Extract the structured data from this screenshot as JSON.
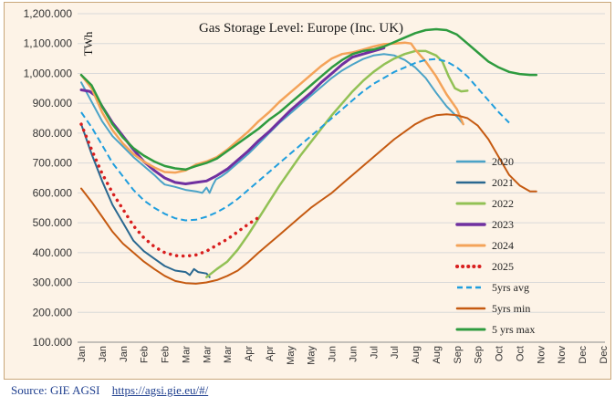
{
  "chart_data": {
    "type": "line",
    "title": "Gas Storage Level: Europe (Inc. UK)",
    "ylabel": "TWh",
    "xlabel": "",
    "ylim": [
      100,
      1200
    ],
    "yticks": [
      "100.000",
      "200.000",
      "300.000",
      "400.000",
      "500.000",
      "600.000",
      "700.000",
      "800.000",
      "900.000",
      "1,000.000",
      "1,100.000",
      "1,200.000"
    ],
    "months_axis": [
      "Jan",
      "Jan",
      "Jan",
      "Feb",
      "Feb",
      "Mar",
      "Mar",
      "Mar",
      "Apr",
      "Apr",
      "May",
      "May",
      "Jun",
      "Jun",
      "Jul",
      "Jul",
      "Aug",
      "Aug",
      "Sep",
      "Sep",
      "Oct",
      "Oct",
      "Nov",
      "Nov",
      "Dec",
      "Dec"
    ],
    "grid": true,
    "legend_position": "right",
    "series": [
      {
        "name": "2020",
        "color": "#4ba3c7",
        "style": "solid",
        "width": 2,
        "points": [
          [
            0,
            970
          ],
          [
            0.5,
            905
          ],
          [
            1,
            840
          ],
          [
            1.5,
            790
          ],
          [
            2,
            755
          ],
          [
            2.5,
            720
          ],
          [
            3,
            690
          ],
          [
            3.5,
            660
          ],
          [
            3.8,
            640
          ],
          [
            4,
            628
          ],
          [
            4.5,
            620
          ],
          [
            5,
            610
          ],
          [
            5.5,
            605
          ],
          [
            5.8,
            600
          ],
          [
            6,
            618
          ],
          [
            6.15,
            600
          ],
          [
            6.3,
            625
          ],
          [
            6.45,
            645
          ],
          [
            6.7,
            655
          ],
          [
            7,
            670
          ],
          [
            7.5,
            700
          ],
          [
            8,
            730
          ],
          [
            8.5,
            765
          ],
          [
            9,
            800
          ],
          [
            9.5,
            835
          ],
          [
            10,
            865
          ],
          [
            10.5,
            895
          ],
          [
            11,
            925
          ],
          [
            11.5,
            955
          ],
          [
            12,
            985
          ],
          [
            12.5,
            1010
          ],
          [
            13,
            1030
          ],
          [
            13.5,
            1048
          ],
          [
            14,
            1060
          ],
          [
            14.5,
            1065
          ],
          [
            15,
            1060
          ],
          [
            15.5,
            1045
          ],
          [
            16,
            1020
          ],
          [
            16.5,
            985
          ],
          [
            17,
            935
          ],
          [
            17.5,
            890
          ],
          [
            18,
            855
          ],
          [
            18.3,
            830
          ]
        ]
      },
      {
        "name": "2021",
        "color": "#2a6890",
        "style": "solid",
        "width": 2,
        "points": [
          [
            0,
            830
          ],
          [
            0.5,
            730
          ],
          [
            1,
            640
          ],
          [
            1.5,
            560
          ],
          [
            2,
            500
          ],
          [
            2.5,
            440
          ],
          [
            3,
            405
          ],
          [
            3.5,
            380
          ],
          [
            4,
            355
          ],
          [
            4.5,
            340
          ],
          [
            5,
            335
          ],
          [
            5.2,
            325
          ],
          [
            5.4,
            345
          ],
          [
            5.6,
            335
          ],
          [
            6,
            330
          ],
          [
            6.15,
            318
          ]
        ]
      },
      {
        "name": "2022",
        "color": "#92c155",
        "style": "solid",
        "width": 2.5,
        "points": [
          [
            6,
            318
          ],
          [
            6.5,
            345
          ],
          [
            7,
            370
          ],
          [
            7.5,
            410
          ],
          [
            8,
            460
          ],
          [
            8.5,
            515
          ],
          [
            9,
            570
          ],
          [
            9.5,
            625
          ],
          [
            10,
            675
          ],
          [
            10.5,
            725
          ],
          [
            11,
            770
          ],
          [
            11.5,
            815
          ],
          [
            12,
            860
          ],
          [
            12.5,
            900
          ],
          [
            13,
            940
          ],
          [
            13.5,
            975
          ],
          [
            14,
            1005
          ],
          [
            14.5,
            1030
          ],
          [
            15,
            1050
          ],
          [
            15.5,
            1065
          ],
          [
            16,
            1075
          ],
          [
            16.5,
            1075
          ],
          [
            17,
            1060
          ],
          [
            17.3,
            1040
          ],
          [
            17.6,
            990
          ],
          [
            17.9,
            950
          ],
          [
            18.2,
            940
          ],
          [
            18.5,
            942
          ]
        ]
      },
      {
        "name": "2023",
        "color": "#7030a0",
        "style": "solid",
        "width": 3,
        "points": [
          [
            0,
            945
          ],
          [
            0.4,
            940
          ],
          [
            0.7,
            925
          ],
          [
            1,
            890
          ],
          [
            1.5,
            835
          ],
          [
            2,
            790
          ],
          [
            2.5,
            745
          ],
          [
            3,
            705
          ],
          [
            3.5,
            675
          ],
          [
            4,
            650
          ],
          [
            4.5,
            635
          ],
          [
            5,
            630
          ],
          [
            5.5,
            635
          ],
          [
            6,
            640
          ],
          [
            6.5,
            658
          ],
          [
            7,
            680
          ],
          [
            7.5,
            710
          ],
          [
            8,
            740
          ],
          [
            8.5,
            775
          ],
          [
            9,
            805
          ],
          [
            9.5,
            840
          ],
          [
            10,
            875
          ],
          [
            10.5,
            905
          ],
          [
            11,
            935
          ],
          [
            11.5,
            970
          ],
          [
            12,
            1000
          ],
          [
            12.5,
            1030
          ],
          [
            13,
            1055
          ],
          [
            13.5,
            1065
          ],
          [
            14,
            1075
          ],
          [
            14.5,
            1085
          ]
        ]
      },
      {
        "name": "2024",
        "color": "#f4a359",
        "style": "solid",
        "width": 2.5,
        "points": [
          [
            0,
            995
          ],
          [
            0.5,
            950
          ],
          [
            1,
            870
          ],
          [
            1.5,
            810
          ],
          [
            2,
            765
          ],
          [
            2.5,
            730
          ],
          [
            3,
            705
          ],
          [
            3.5,
            685
          ],
          [
            4,
            670
          ],
          [
            4.5,
            668
          ],
          [
            5,
            675
          ],
          [
            5.5,
            695
          ],
          [
            6,
            705
          ],
          [
            6.5,
            720
          ],
          [
            7,
            745
          ],
          [
            7.5,
            775
          ],
          [
            8,
            805
          ],
          [
            8.5,
            840
          ],
          [
            9,
            870
          ],
          [
            9.5,
            905
          ],
          [
            10,
            935
          ],
          [
            10.5,
            965
          ],
          [
            11,
            995
          ],
          [
            11.5,
            1025
          ],
          [
            12,
            1050
          ],
          [
            12.5,
            1065
          ],
          [
            13,
            1070
          ],
          [
            13.5,
            1080
          ],
          [
            14,
            1090
          ],
          [
            14.5,
            1098
          ],
          [
            15,
            1100
          ],
          [
            15.5,
            1103
          ],
          [
            15.8,
            1100
          ],
          [
            16,
            1080
          ],
          [
            16.5,
            1040
          ],
          [
            17,
            990
          ],
          [
            17.5,
            930
          ],
          [
            18,
            880
          ],
          [
            18.3,
            830
          ]
        ]
      },
      {
        "name": "2025",
        "color": "#d81e1e",
        "style": "dotted",
        "width": 3.5,
        "points": [
          [
            0,
            830
          ],
          [
            0.5,
            745
          ],
          [
            1,
            665
          ],
          [
            1.5,
            600
          ],
          [
            2,
            545
          ],
          [
            2.5,
            490
          ],
          [
            3,
            450
          ],
          [
            3.5,
            420
          ],
          [
            4,
            400
          ],
          [
            4.5,
            390
          ],
          [
            5,
            388
          ],
          [
            5.5,
            392
          ],
          [
            6,
            405
          ],
          [
            6.5,
            425
          ],
          [
            7,
            445
          ],
          [
            7.5,
            470
          ],
          [
            8,
            495
          ],
          [
            8.5,
            518
          ]
        ]
      },
      {
        "name": "5yrs avg",
        "color": "#1f9ede",
        "style": "dashed",
        "width": 2,
        "points": [
          [
            0,
            870
          ],
          [
            0.5,
            820
          ],
          [
            1,
            760
          ],
          [
            1.5,
            700
          ],
          [
            2,
            655
          ],
          [
            2.5,
            610
          ],
          [
            3,
            575
          ],
          [
            3.5,
            550
          ],
          [
            4,
            530
          ],
          [
            4.5,
            515
          ],
          [
            5,
            508
          ],
          [
            5.5,
            510
          ],
          [
            6,
            520
          ],
          [
            6.5,
            535
          ],
          [
            7,
            555
          ],
          [
            7.5,
            580
          ],
          [
            8,
            610
          ],
          [
            8.5,
            640
          ],
          [
            9,
            670
          ],
          [
            9.5,
            700
          ],
          [
            10,
            730
          ],
          [
            10.5,
            760
          ],
          [
            11,
            790
          ],
          [
            11.5,
            820
          ],
          [
            12,
            850
          ],
          [
            12.5,
            880
          ],
          [
            13,
            910
          ],
          [
            13.5,
            940
          ],
          [
            14,
            965
          ],
          [
            14.5,
            985
          ],
          [
            15,
            1005
          ],
          [
            15.5,
            1020
          ],
          [
            16,
            1035
          ],
          [
            16.5,
            1045
          ],
          [
            17,
            1048
          ],
          [
            17.5,
            1040
          ],
          [
            18,
            1020
          ],
          [
            18.5,
            990
          ],
          [
            19,
            950
          ],
          [
            19.5,
            910
          ],
          [
            20,
            870
          ],
          [
            20.5,
            835
          ]
        ]
      },
      {
        "name": "5yrs min",
        "color": "#c55a11",
        "style": "solid",
        "width": 2,
        "points": [
          [
            0,
            615
          ],
          [
            0.5,
            570
          ],
          [
            1,
            520
          ],
          [
            1.5,
            470
          ],
          [
            2,
            430
          ],
          [
            2.5,
            400
          ],
          [
            3,
            370
          ],
          [
            3.5,
            345
          ],
          [
            4,
            322
          ],
          [
            4.5,
            305
          ],
          [
            5,
            298
          ],
          [
            5.5,
            296
          ],
          [
            6,
            300
          ],
          [
            6.5,
            308
          ],
          [
            7,
            322
          ],
          [
            7.5,
            340
          ],
          [
            8,
            368
          ],
          [
            8.5,
            400
          ],
          [
            9,
            430
          ],
          [
            9.5,
            460
          ],
          [
            10,
            490
          ],
          [
            10.5,
            520
          ],
          [
            11,
            550
          ],
          [
            11.5,
            575
          ],
          [
            12,
            600
          ],
          [
            12.5,
            630
          ],
          [
            13,
            660
          ],
          [
            13.5,
            690
          ],
          [
            14,
            720
          ],
          [
            14.5,
            750
          ],
          [
            15,
            780
          ],
          [
            15.5,
            805
          ],
          [
            16,
            830
          ],
          [
            16.5,
            848
          ],
          [
            17,
            860
          ],
          [
            17.5,
            863
          ],
          [
            18,
            860
          ],
          [
            18.5,
            850
          ],
          [
            19,
            825
          ],
          [
            19.5,
            780
          ],
          [
            20,
            720
          ],
          [
            20.5,
            660
          ],
          [
            21,
            625
          ],
          [
            21.5,
            605
          ],
          [
            21.8,
            605
          ]
        ]
      },
      {
        "name": "5 yrs max",
        "color": "#2e9b3f",
        "style": "solid",
        "width": 2.5,
        "points": [
          [
            0,
            995
          ],
          [
            0.5,
            960
          ],
          [
            1,
            890
          ],
          [
            1.5,
            830
          ],
          [
            2,
            785
          ],
          [
            2.5,
            750
          ],
          [
            3,
            725
          ],
          [
            3.5,
            705
          ],
          [
            4,
            690
          ],
          [
            4.5,
            682
          ],
          [
            5,
            678
          ],
          [
            5.5,
            690
          ],
          [
            6,
            700
          ],
          [
            6.5,
            715
          ],
          [
            7,
            740
          ],
          [
            7.5,
            765
          ],
          [
            8,
            790
          ],
          [
            8.5,
            815
          ],
          [
            9,
            845
          ],
          [
            9.5,
            870
          ],
          [
            10,
            900
          ],
          [
            10.5,
            930
          ],
          [
            11,
            960
          ],
          [
            11.5,
            990
          ],
          [
            12,
            1020
          ],
          [
            12.5,
            1045
          ],
          [
            13,
            1065
          ],
          [
            13.5,
            1075
          ],
          [
            14,
            1080
          ],
          [
            14.5,
            1090
          ],
          [
            15,
            1105
          ],
          [
            15.5,
            1120
          ],
          [
            16,
            1135
          ],
          [
            16.5,
            1145
          ],
          [
            17,
            1148
          ],
          [
            17.5,
            1145
          ],
          [
            18,
            1130
          ],
          [
            18.5,
            1100
          ],
          [
            19,
            1070
          ],
          [
            19.5,
            1040
          ],
          [
            20,
            1020
          ],
          [
            20.5,
            1005
          ],
          [
            21,
            998
          ],
          [
            21.5,
            995
          ],
          [
            21.8,
            995
          ]
        ]
      }
    ]
  },
  "source": {
    "label": "Source: GIE AGSI",
    "url": "https://agsi.gie.eu/#/"
  }
}
